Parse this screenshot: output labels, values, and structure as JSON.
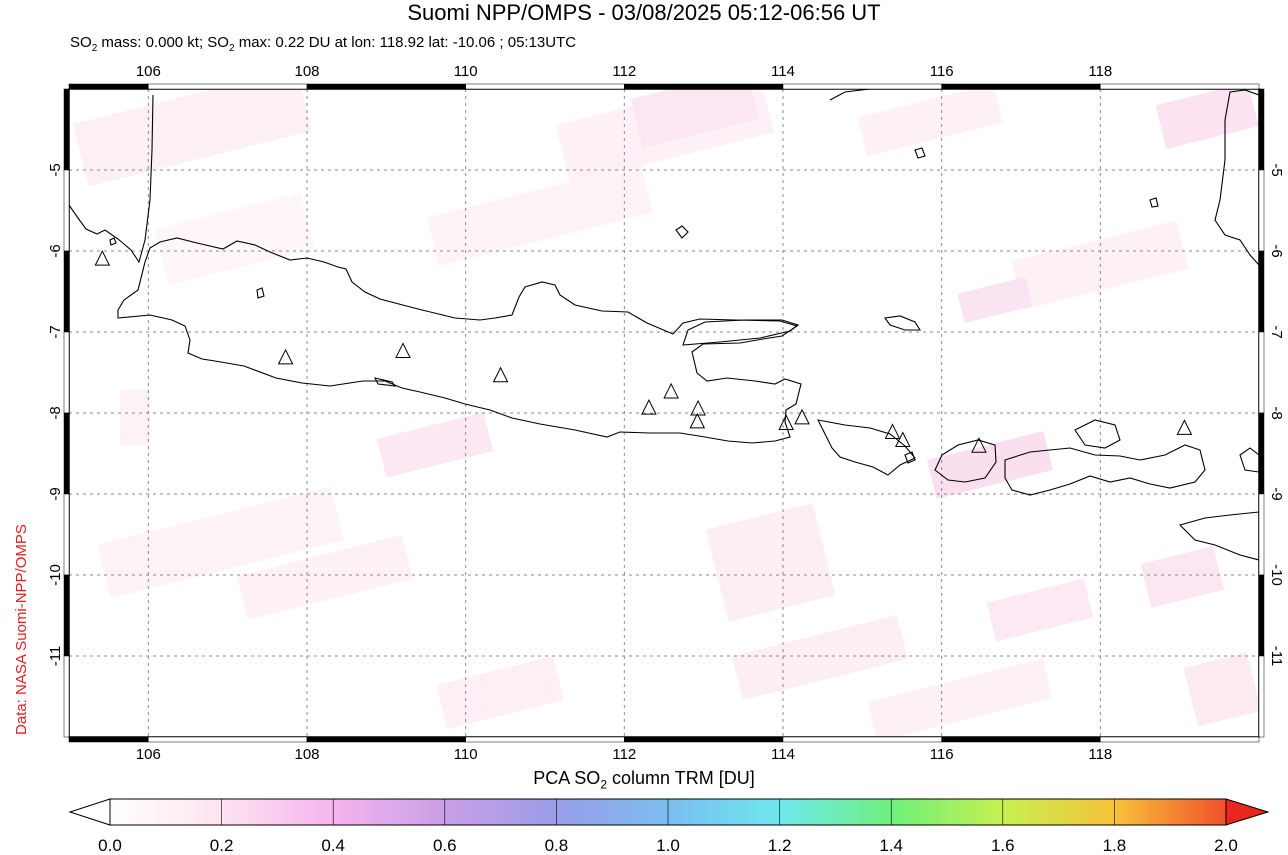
{
  "title": "Suomi NPP/OMPS - 03/08/2025 05:12-06:56 UT",
  "subtitle": {
    "p1": "SO",
    "s1": "2",
    "p2": " mass: 0.000 kt; SO",
    "s2": "2",
    "p3": " max: 0.22 DU at lon: 118.92 lat: -10.06 ; 05:13UTC"
  },
  "credit": "Data: NASA Suomi-NPP/OMPS",
  "map": {
    "lon_range": [
      105,
      120
    ],
    "lat_range": [
      -12,
      -4
    ],
    "lon_ticks": [
      106,
      108,
      110,
      112,
      114,
      116,
      118
    ],
    "lon_tick_labels": [
      "106",
      "108",
      "110",
      "112",
      "114",
      "116",
      "118"
    ],
    "lat_ticks": [
      -5,
      -6,
      -7,
      -8,
      -9,
      -10,
      -11
    ],
    "lat_tick_labels": [
      "-5",
      "-6",
      "-7",
      "-8",
      "-9",
      "-10",
      "-11"
    ],
    "grid": "dotted",
    "volcano_markers": [
      {
        "lon": 105.42,
        "lat": -6.1
      },
      {
        "lon": 107.73,
        "lat": -7.32
      },
      {
        "lon": 109.21,
        "lat": -7.24
      },
      {
        "lon": 110.44,
        "lat": -7.54
      },
      {
        "lon": 112.31,
        "lat": -7.94
      },
      {
        "lon": 112.59,
        "lat": -7.74
      },
      {
        "lon": 112.93,
        "lat": -7.95
      },
      {
        "lon": 112.92,
        "lat": -8.11
      },
      {
        "lon": 114.04,
        "lat": -8.13
      },
      {
        "lon": 114.24,
        "lat": -8.06
      },
      {
        "lon": 115.38,
        "lat": -8.24
      },
      {
        "lon": 115.51,
        "lat": -8.34
      },
      {
        "lon": 116.47,
        "lat": -8.41
      },
      {
        "lon": 119.06,
        "lat": -8.19
      }
    ]
  },
  "colorbar": {
    "title_p1": "PCA SO",
    "title_sub": "2",
    "title_p2": " column TRM [DU]",
    "min": 0.0,
    "max": 2.0,
    "tick_labels": [
      "0.0",
      "0.2",
      "0.4",
      "0.6",
      "0.8",
      "1.0",
      "1.2",
      "1.4",
      "1.6",
      "1.8",
      "2.0"
    ],
    "colors": [
      "#ffffff",
      "#fde4f0",
      "#f6b4ef",
      "#c99ee6",
      "#9b9de8",
      "#7bbdf0",
      "#6ee8ef",
      "#6ef07c",
      "#c7f050",
      "#f7c23a",
      "#f0502a",
      "#e8281c"
    ]
  }
}
